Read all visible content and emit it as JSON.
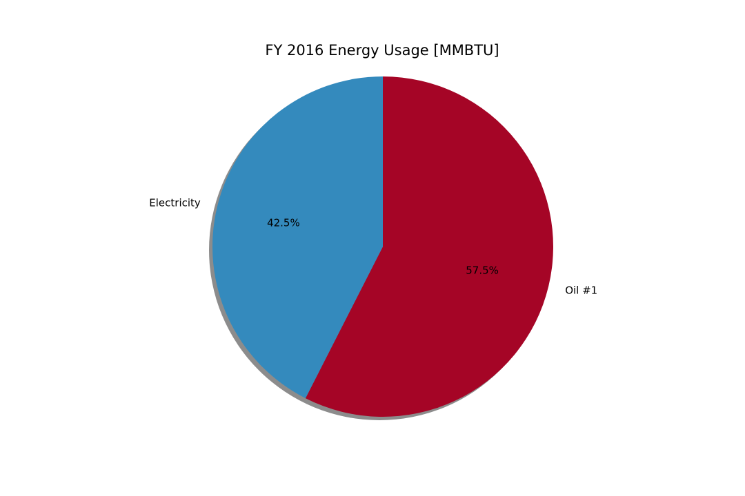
{
  "chart_data": {
    "type": "pie",
    "title": "FY 2016 Energy Usage [MMBTU]",
    "shadow": true,
    "start_angle_deg": 90,
    "direction": "clockwise-from-top",
    "slices": [
      {
        "label": "Oil #1",
        "percent": 57.5,
        "pct_text": "57.5%",
        "color": "#a50526"
      },
      {
        "label": "Electricity",
        "percent": 42.5,
        "pct_text": "42.5%",
        "color": "#348abd"
      }
    ]
  }
}
